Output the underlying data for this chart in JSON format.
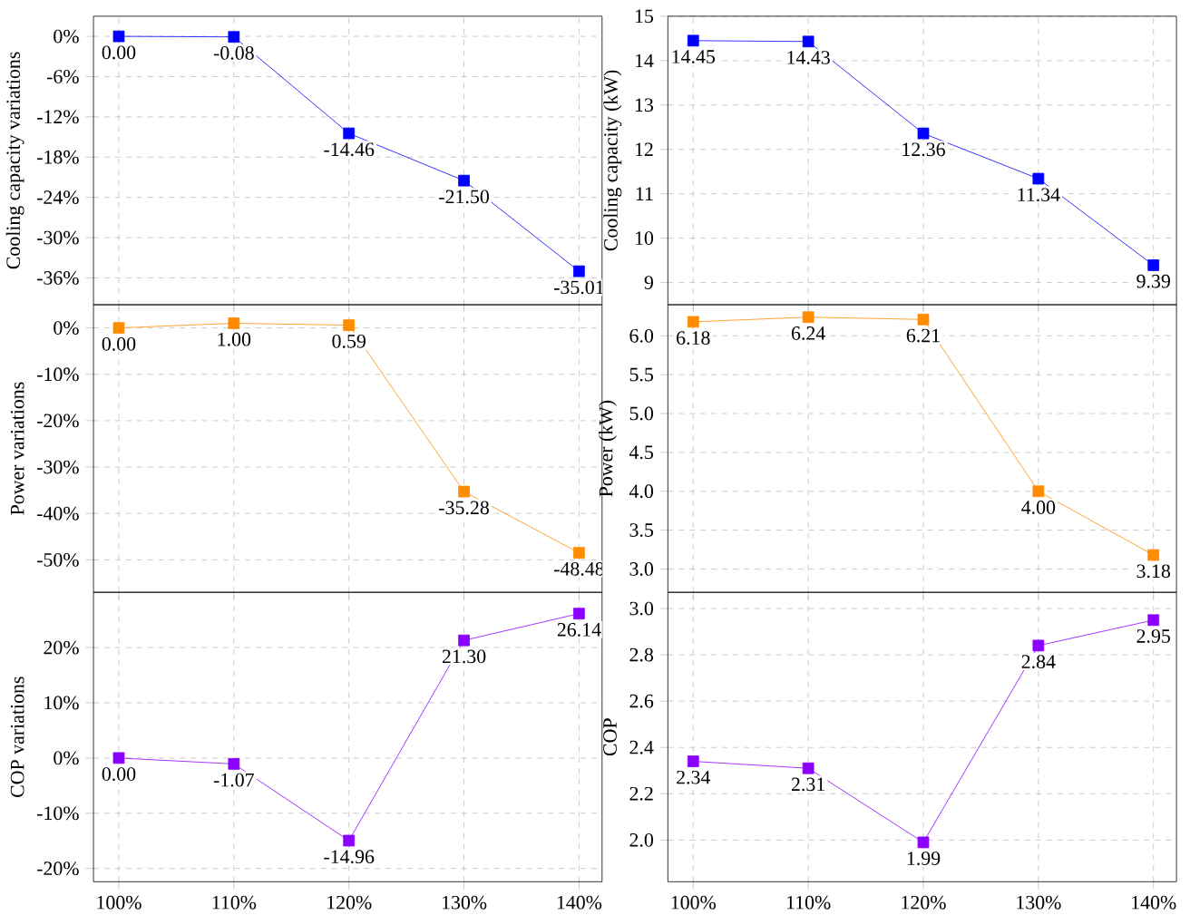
{
  "chart_data": [
    {
      "type": "line",
      "ylabel": "Cooling capacity variations",
      "categories": [
        null,
        null,
        null,
        null,
        null
      ],
      "values": [
        0,
        -0.08,
        -14.46,
        -21.5,
        -35.01
      ],
      "value_labels": [
        "0.00",
        "-0.08",
        "-14.46",
        "-21.50",
        "-35.01"
      ],
      "color": "#0000ff",
      "ylim": [
        -40,
        3
      ],
      "yticks": [
        {
          "value": -36,
          "label": "-36%"
        },
        {
          "value": -30,
          "label": "-30%"
        },
        {
          "value": -24,
          "label": "-24%"
        },
        {
          "value": -18,
          "label": "-18%"
        },
        {
          "value": -12,
          "label": "-12%"
        },
        {
          "value": -6,
          "label": "-6%"
        },
        {
          "value": 0,
          "label": "0%"
        }
      ],
      "grid": true,
      "marker": "square",
      "line_style": "solid",
      "tick_labels": "y"
    },
    {
      "type": "line",
      "ylabel": "Cooling capacity (kW)",
      "categories": [
        null,
        null,
        null,
        null,
        null
      ],
      "values": [
        14.45,
        14.43,
        12.36,
        11.34,
        9.39
      ],
      "value_labels": [
        "14.45",
        "14.43",
        "12.36",
        "11.34",
        "9.39"
      ],
      "color": "#0000ff",
      "ylim": [
        8.5,
        15
      ],
      "yticks": [
        9,
        10,
        11,
        12,
        13,
        14,
        15
      ],
      "grid": true,
      "marker": "square",
      "line_style": "solid",
      "tick_labels": "y"
    },
    {
      "type": "line",
      "ylabel": "Power variations",
      "categories": [
        null,
        null,
        null,
        null,
        null
      ],
      "values": [
        0,
        1.0,
        0.59,
        -35.28,
        -48.48
      ],
      "value_labels": [
        "0.00",
        "1.00",
        "0.59",
        "-35.28",
        "-48.48"
      ],
      "color": "#ff8c00",
      "ylim": [
        -57,
        5
      ],
      "yticks": [
        {
          "value": -50,
          "label": "-50%"
        },
        {
          "value": -40,
          "label": "-40%"
        },
        {
          "value": -30,
          "label": "-30%"
        },
        {
          "value": -20,
          "label": "-20%"
        },
        {
          "value": -10,
          "label": "-10%"
        },
        {
          "value": 0,
          "label": "0%"
        }
      ],
      "grid": true,
      "marker": "square",
      "line_style": "solid",
      "tick_labels": "y"
    },
    {
      "type": "line",
      "ylabel": "Power (kW)",
      "categories": [
        null,
        null,
        null,
        null,
        null
      ],
      "values": [
        6.18,
        6.24,
        6.21,
        4.0,
        3.18
      ],
      "value_labels": [
        "6.18",
        "6.24",
        "6.21",
        "4.00",
        "3.18"
      ],
      "color": "#ff8c00",
      "ylim": [
        2.7,
        6.4
      ],
      "yticks": [
        {
          "value": 3.0,
          "label": "3.0"
        },
        {
          "value": 3.5,
          "label": "3.5"
        },
        {
          "value": 4.0,
          "label": "4.0"
        },
        {
          "value": 4.5,
          "label": "4.5"
        },
        {
          "value": 5.0,
          "label": "5.0"
        },
        {
          "value": 5.5,
          "label": "5.5"
        },
        {
          "value": 6.0,
          "label": "6.0"
        }
      ],
      "grid": true,
      "marker": "square",
      "line_style": "solid",
      "tick_labels": "y"
    },
    {
      "type": "line",
      "ylabel": "COP variations",
      "categories": [
        "100%",
        "110%",
        "120%",
        "130%",
        "140%"
      ],
      "values": [
        0,
        -1.07,
        -14.96,
        21.3,
        26.14
      ],
      "value_labels": [
        "0.00",
        "-1.07",
        "-14.96",
        "21.30",
        "26.14"
      ],
      "color": "#8b00ff",
      "ylim": [
        -22.4,
        30
      ],
      "yticks": [
        {
          "value": -20,
          "label": "-20%"
        },
        {
          "value": -10,
          "label": "-10%"
        },
        {
          "value": 0,
          "label": "0%"
        },
        {
          "value": 10,
          "label": "10%"
        },
        {
          "value": 20,
          "label": "20%"
        }
      ],
      "grid": true,
      "marker": "square",
      "line_style": "solid"
    },
    {
      "type": "line",
      "ylabel": "COP",
      "categories": [
        "100%",
        "110%",
        "120%",
        "130%",
        "140%"
      ],
      "values": [
        2.34,
        2.31,
        1.99,
        2.84,
        2.95
      ],
      "value_labels": [
        "2.34",
        "2.31",
        "1.99",
        "2.84",
        "2.95"
      ],
      "color": "#8b00ff",
      "ylim": [
        1.82,
        3.07
      ],
      "yticks": [
        {
          "value": 2.0,
          "label": "2.0"
        },
        {
          "value": 2.2,
          "label": "2.2"
        },
        {
          "value": 2.4,
          "label": "2.4"
        },
        {
          "value": 2.6,
          "label": "2.6"
        },
        {
          "value": 2.8,
          "label": "2.8"
        },
        {
          "value": 3.0,
          "label": "3.0"
        }
      ],
      "grid": true,
      "marker": "square",
      "line_style": "solid"
    }
  ]
}
